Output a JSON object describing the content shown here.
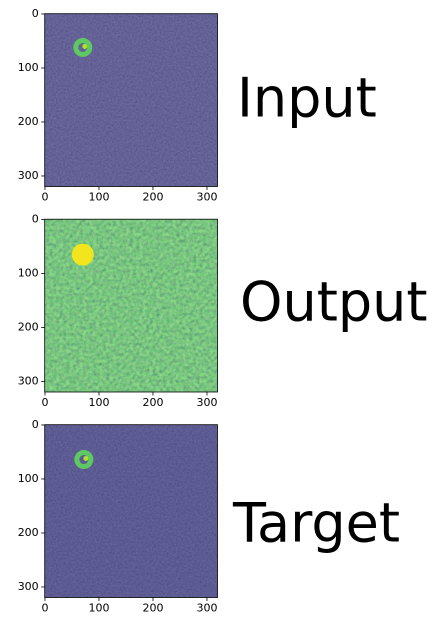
{
  "chart_data": [
    {
      "type": "image",
      "label": "Input",
      "xlim": [
        -0.5,
        319.5
      ],
      "ylim": [
        319.5,
        -0.5
      ],
      "xticks": [
        0,
        100,
        200,
        300
      ],
      "yticks": [
        0,
        100,
        200,
        300
      ],
      "color": "#423f88"
    },
    {
      "type": "image",
      "label": "Output",
      "xlim": [
        -0.5,
        319.5
      ],
      "ylim": [
        319.5,
        -0.5
      ],
      "xticks": [
        0,
        100,
        200,
        300
      ],
      "yticks": [
        0,
        100,
        200,
        300
      ],
      "color": "#2f9a86"
    },
    {
      "type": "image",
      "label": "Target",
      "xlim": [
        -0.5,
        319.5
      ],
      "ylim": [
        319.5,
        -0.5
      ],
      "xticks": [
        0,
        100,
        200,
        300
      ],
      "yticks": [
        0,
        100,
        200,
        300
      ],
      "color": "#3f3c86"
    }
  ]
}
